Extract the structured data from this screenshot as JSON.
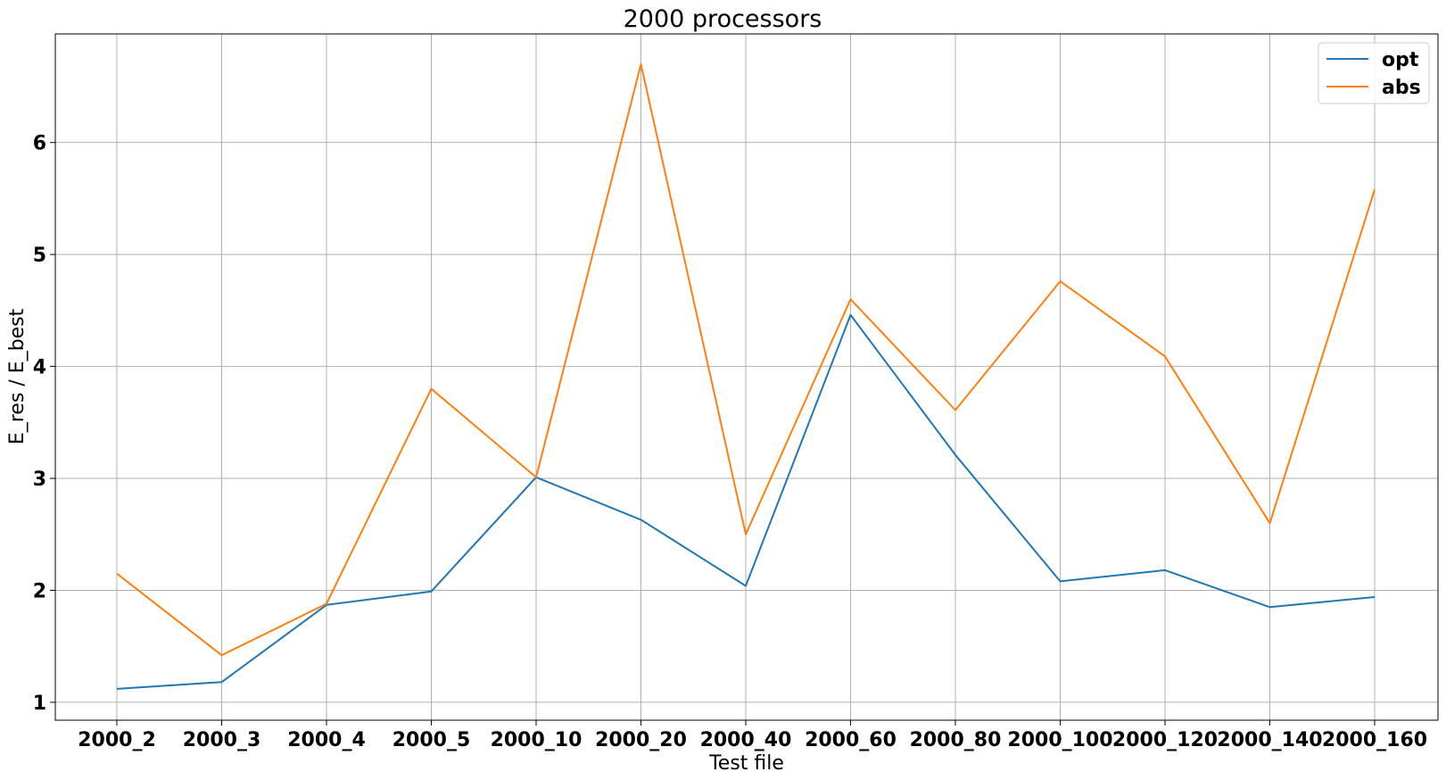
{
  "chart_data": {
    "type": "line",
    "title": "2000 processors",
    "xlabel": "Test file",
    "ylabel": "E_res / E_best",
    "categories": [
      "2000_2",
      "2000_3",
      "2000_4",
      "2000_5",
      "2000_10",
      "2000_20",
      "2000_40",
      "2000_60",
      "2000_80",
      "2000_100",
      "2000_120",
      "2000_140",
      "2000_160"
    ],
    "ylim": [
      0.84,
      6.97
    ],
    "yticks": [
      1,
      2,
      3,
      4,
      5,
      6
    ],
    "grid": true,
    "legend_position": "upper right",
    "series": [
      {
        "name": "opt",
        "color": "#1f77b4",
        "values": [
          1.12,
          1.18,
          1.87,
          1.99,
          3.01,
          2.63,
          2.04,
          4.46,
          3.21,
          2.08,
          2.18,
          1.85,
          1.94
        ]
      },
      {
        "name": "abs",
        "color": "#ff7f0e",
        "values": [
          2.15,
          1.42,
          1.88,
          3.8,
          3.01,
          6.7,
          2.5,
          4.6,
          3.61,
          4.76,
          4.09,
          2.6,
          5.58
        ]
      }
    ]
  }
}
